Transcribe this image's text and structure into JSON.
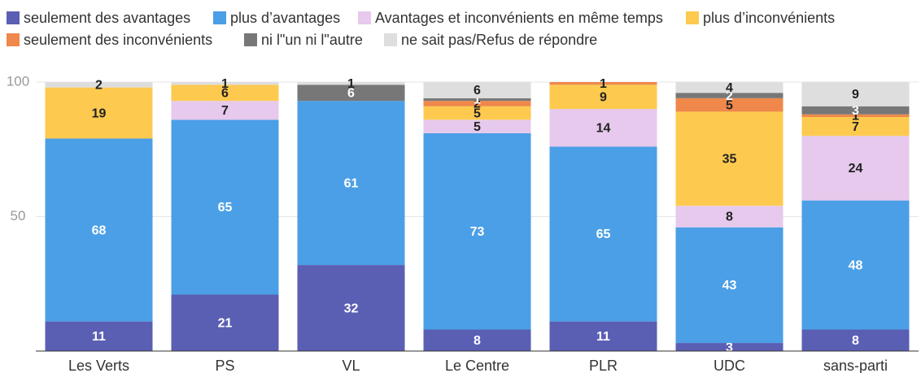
{
  "chart_data": {
    "type": "stacked_bar",
    "categories": [
      "Les Verts",
      "PS",
      "VL",
      "Le Centre",
      "PLR",
      "UDC",
      "sans-parti"
    ],
    "series": [
      {
        "name": "seulement des avantages",
        "color": "#5a5fb3",
        "values": [
          11,
          21,
          32,
          8,
          11,
          3,
          8
        ]
      },
      {
        "name": "plus d’avantages",
        "color": "#4b9fe6",
        "values": [
          68,
          65,
          61,
          73,
          65,
          43,
          48
        ]
      },
      {
        "name": "Avantages et inconvénients en même temps",
        "color": "#e6c9ec",
        "values": [
          0,
          7,
          0,
          5,
          14,
          8,
          24
        ]
      },
      {
        "name": "plus d’inconvénients",
        "color": "#fdca4f",
        "values": [
          19,
          6,
          0,
          5,
          9,
          35,
          7
        ]
      },
      {
        "name": "seulement des inconvénients",
        "color": "#ef884a",
        "values": [
          0,
          0,
          0,
          2,
          1,
          5,
          1
        ]
      },
      {
        "name": "ni l\"un ni l\"autre",
        "color": "#777777",
        "values": [
          0,
          0,
          6,
          1,
          0,
          2,
          3
        ]
      },
      {
        "name": "ne sait pas/Refus de répondre",
        "color": "#dedede",
        "values": [
          2,
          1,
          1,
          6,
          0,
          4,
          9
        ]
      }
    ],
    "ylim": [
      0,
      100
    ],
    "yticks": [
      50,
      100
    ],
    "grid": true
  }
}
